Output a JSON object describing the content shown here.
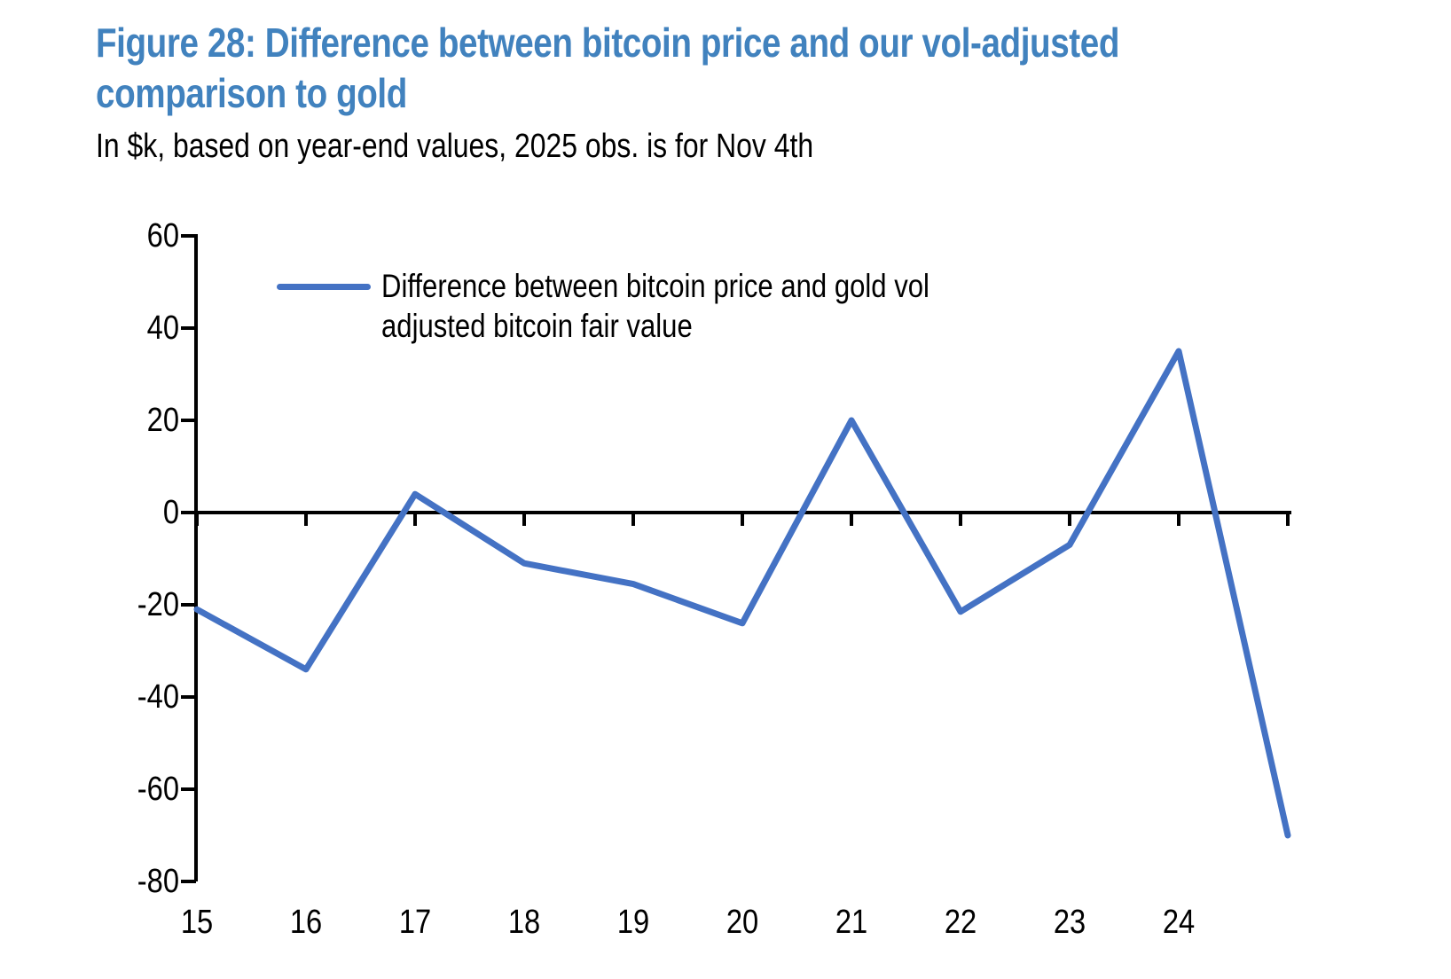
{
  "figure": {
    "title": "Figure 28: Difference between bitcoin price and our vol-adjusted comparison to gold",
    "title_lines": [
      "Figure 28: Difference between bitcoin price and our vol-adjusted",
      "comparison to gold"
    ],
    "subtitle": "In $k, based on year-end values, 2025 obs. is for Nov 4th"
  },
  "legend": {
    "lines": [
      "Difference between bitcoin price and gold vol",
      "adjusted bitcoin fair value"
    ]
  },
  "colors": {
    "title_blue": "#4182BE",
    "series_blue": "#4472C4",
    "axis_black": "#000000",
    "background": "#FFFFFF"
  },
  "chart_data": {
    "type": "line",
    "title": "Figure 28: Difference between bitcoin price and our vol-adjusted comparison to gold",
    "subtitle": "In $k, based on year-end values, 2025 obs. is for Nov 4th",
    "xlabel": "",
    "ylabel": "",
    "x": [
      2015,
      2016,
      2017,
      2018,
      2019,
      2020,
      2021,
      2022,
      2023,
      2024,
      2025
    ],
    "x_tick_labels": [
      "15",
      "16",
      "17",
      "18",
      "19",
      "20",
      "21",
      "22",
      "23",
      "24"
    ],
    "y_ticks": [
      60,
      40,
      20,
      0,
      -20,
      -40,
      -60,
      -80
    ],
    "ylim": [
      -80,
      60
    ],
    "grid": false,
    "legend_position": "top-left-inside",
    "series": [
      {
        "name": "Difference between bitcoin price and gold vol adjusted bitcoin fair value",
        "color": "#4472C4",
        "values": [
          -21,
          -34,
          4,
          -11,
          -15.5,
          -24,
          20,
          -21.5,
          -7,
          35,
          -70
        ]
      }
    ]
  }
}
